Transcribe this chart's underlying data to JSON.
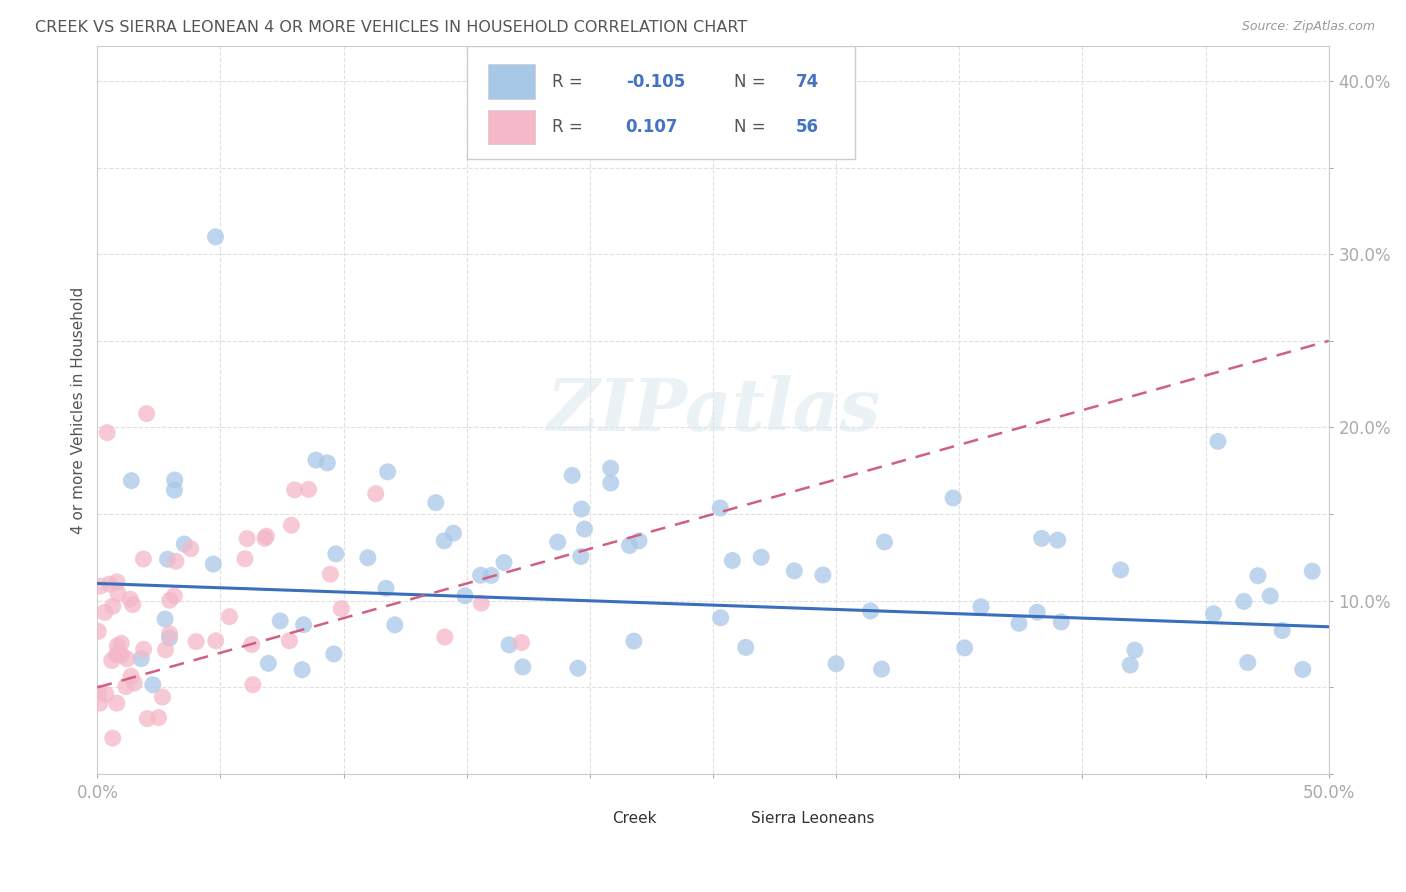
{
  "title": "CREEK VS SIERRA LEONEAN 4 OR MORE VEHICLES IN HOUSEHOLD CORRELATION CHART",
  "source": "Source: ZipAtlas.com",
  "ylabel": "4 or more Vehicles in Household",
  "watermark": "ZIPatlas",
  "xlim": [
    0.0,
    0.5
  ],
  "ylim": [
    0.0,
    0.42
  ],
  "xtick_vals": [
    0.0,
    0.05,
    0.1,
    0.15,
    0.2,
    0.25,
    0.3,
    0.35,
    0.4,
    0.45,
    0.5
  ],
  "xtick_labels": [
    "0.0%",
    "",
    "",
    "",
    "",
    "",
    "",
    "",
    "",
    "",
    "50.0%"
  ],
  "ytick_vals": [
    0.0,
    0.05,
    0.1,
    0.15,
    0.2,
    0.25,
    0.3,
    0.35,
    0.4
  ],
  "ytick_labels": [
    "",
    "",
    "10.0%",
    "",
    "20.0%",
    "",
    "30.0%",
    "",
    "40.0%"
  ],
  "creek_R": -0.105,
  "creek_N": 74,
  "sierra_R": 0.107,
  "sierra_N": 56,
  "creek_color": "#a8c8e8",
  "creek_line_color": "#3a6fbd",
  "sierra_color": "#f4b8c8",
  "sierra_line_color": "#d06080",
  "background_color": "#ffffff",
  "grid_color": "#e0e0e0",
  "tick_color": "#4472c4",
  "title_color": "#555555",
  "source_color": "#999999",
  "ylabel_color": "#555555",
  "legend_label_color": "#555555",
  "legend_val_color": "#4472c4"
}
